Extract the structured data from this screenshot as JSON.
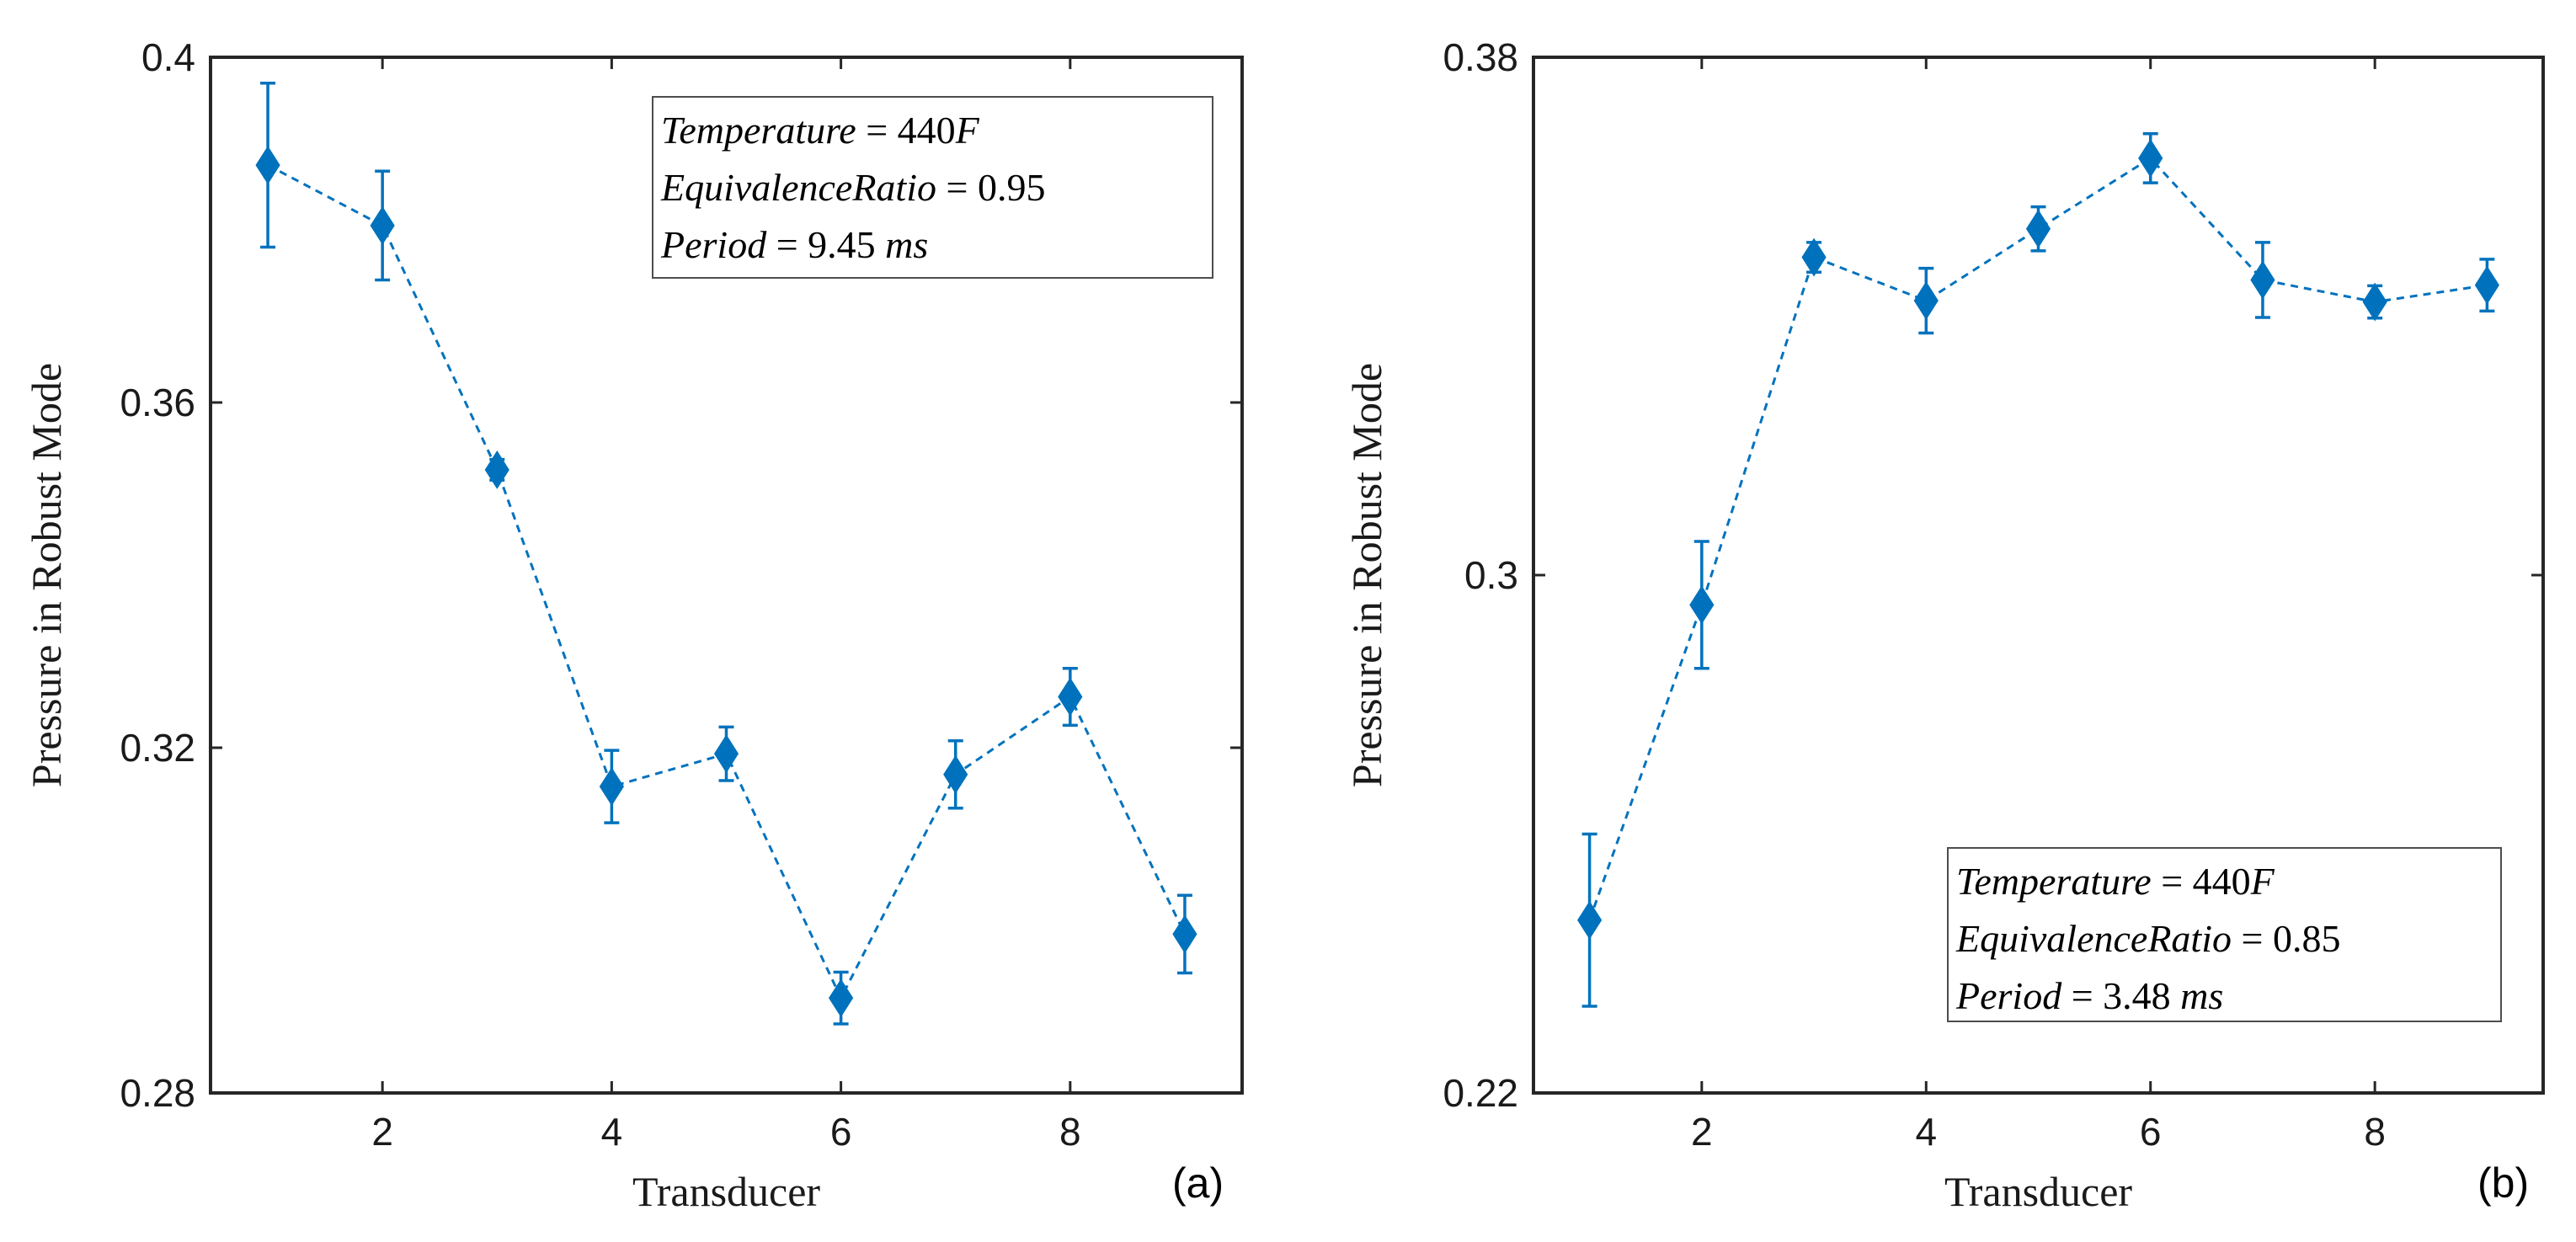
{
  "chart_data": [
    {
      "type": "line",
      "panel_label": "(a)",
      "xlabel": "Transducer",
      "ylabel": "Pressure in Robust Mode",
      "xlim": [
        0.5,
        9.5
      ],
      "ylim": [
        0.28,
        0.4
      ],
      "xticks": [
        2,
        4,
        6,
        8
      ],
      "xtick_labels": [
        "2",
        "4",
        "6",
        "8"
      ],
      "yticks": [
        0.28,
        0.32,
        0.36,
        0.4
      ],
      "ytick_labels": [
        "0.28",
        "0.32",
        "0.36",
        "0.4"
      ],
      "grid": false,
      "color": "#0072BD",
      "marker": "diamond",
      "line_style": "dashed",
      "series": [
        {
          "name": "Pressure",
          "x": [
            1,
            2,
            3,
            4,
            5,
            6,
            7,
            8,
            9
          ],
          "y": [
            0.3875,
            0.3805,
            0.3522,
            0.3155,
            0.3193,
            0.291,
            0.3169,
            0.3259,
            0.2984
          ],
          "err": [
            0.0095,
            0.0063,
            0.0012,
            0.0042,
            0.0031,
            0.003,
            0.0039,
            0.0033,
            0.0045
          ]
        }
      ],
      "legend": {
        "placement": "top-right",
        "lines": [
          {
            "label": "Temperature",
            "eq": " = ",
            "value": "440",
            "unit": "F"
          },
          {
            "label": "EquivalenceRatio",
            "eq": " = ",
            "value": "0.95",
            "unit": ""
          },
          {
            "label": "Period",
            "eq": " = ",
            "value": "9.45 ",
            "unit": "ms"
          }
        ]
      }
    },
    {
      "type": "line",
      "panel_label": "(b)",
      "xlabel": "Transducer",
      "ylabel": "Pressure in Robust Mode",
      "xlim": [
        0.5,
        9.5
      ],
      "ylim": [
        0.22,
        0.38
      ],
      "xticks": [
        2,
        4,
        6,
        8
      ],
      "xtick_labels": [
        "2",
        "4",
        "6",
        "8"
      ],
      "yticks": [
        0.22,
        0.3,
        0.38
      ],
      "ytick_labels": [
        "0.22",
        "0.3",
        "0.38"
      ],
      "grid": false,
      "color": "#0072BD",
      "marker": "diamond",
      "line_style": "dashed",
      "series": [
        {
          "name": "Pressure",
          "x": [
            1,
            2,
            3,
            4,
            5,
            6,
            7,
            8,
            9
          ],
          "y": [
            0.2467,
            0.2954,
            0.3491,
            0.3424,
            0.3535,
            0.3644,
            0.3456,
            0.3422,
            0.3448
          ],
          "err": [
            0.0133,
            0.0098,
            0.0023,
            0.005,
            0.0034,
            0.0038,
            0.0058,
            0.0025,
            0.004
          ]
        }
      ],
      "legend": {
        "placement": "bottom-right",
        "lines": [
          {
            "label": "Temperature",
            "eq": " = ",
            "value": "440",
            "unit": "F"
          },
          {
            "label": "EquivalenceRatio",
            "eq": " = ",
            "value": "0.85",
            "unit": ""
          },
          {
            "label": "Period",
            "eq": " = ",
            "value": "3.48 ",
            "unit": "ms"
          }
        ]
      }
    }
  ]
}
